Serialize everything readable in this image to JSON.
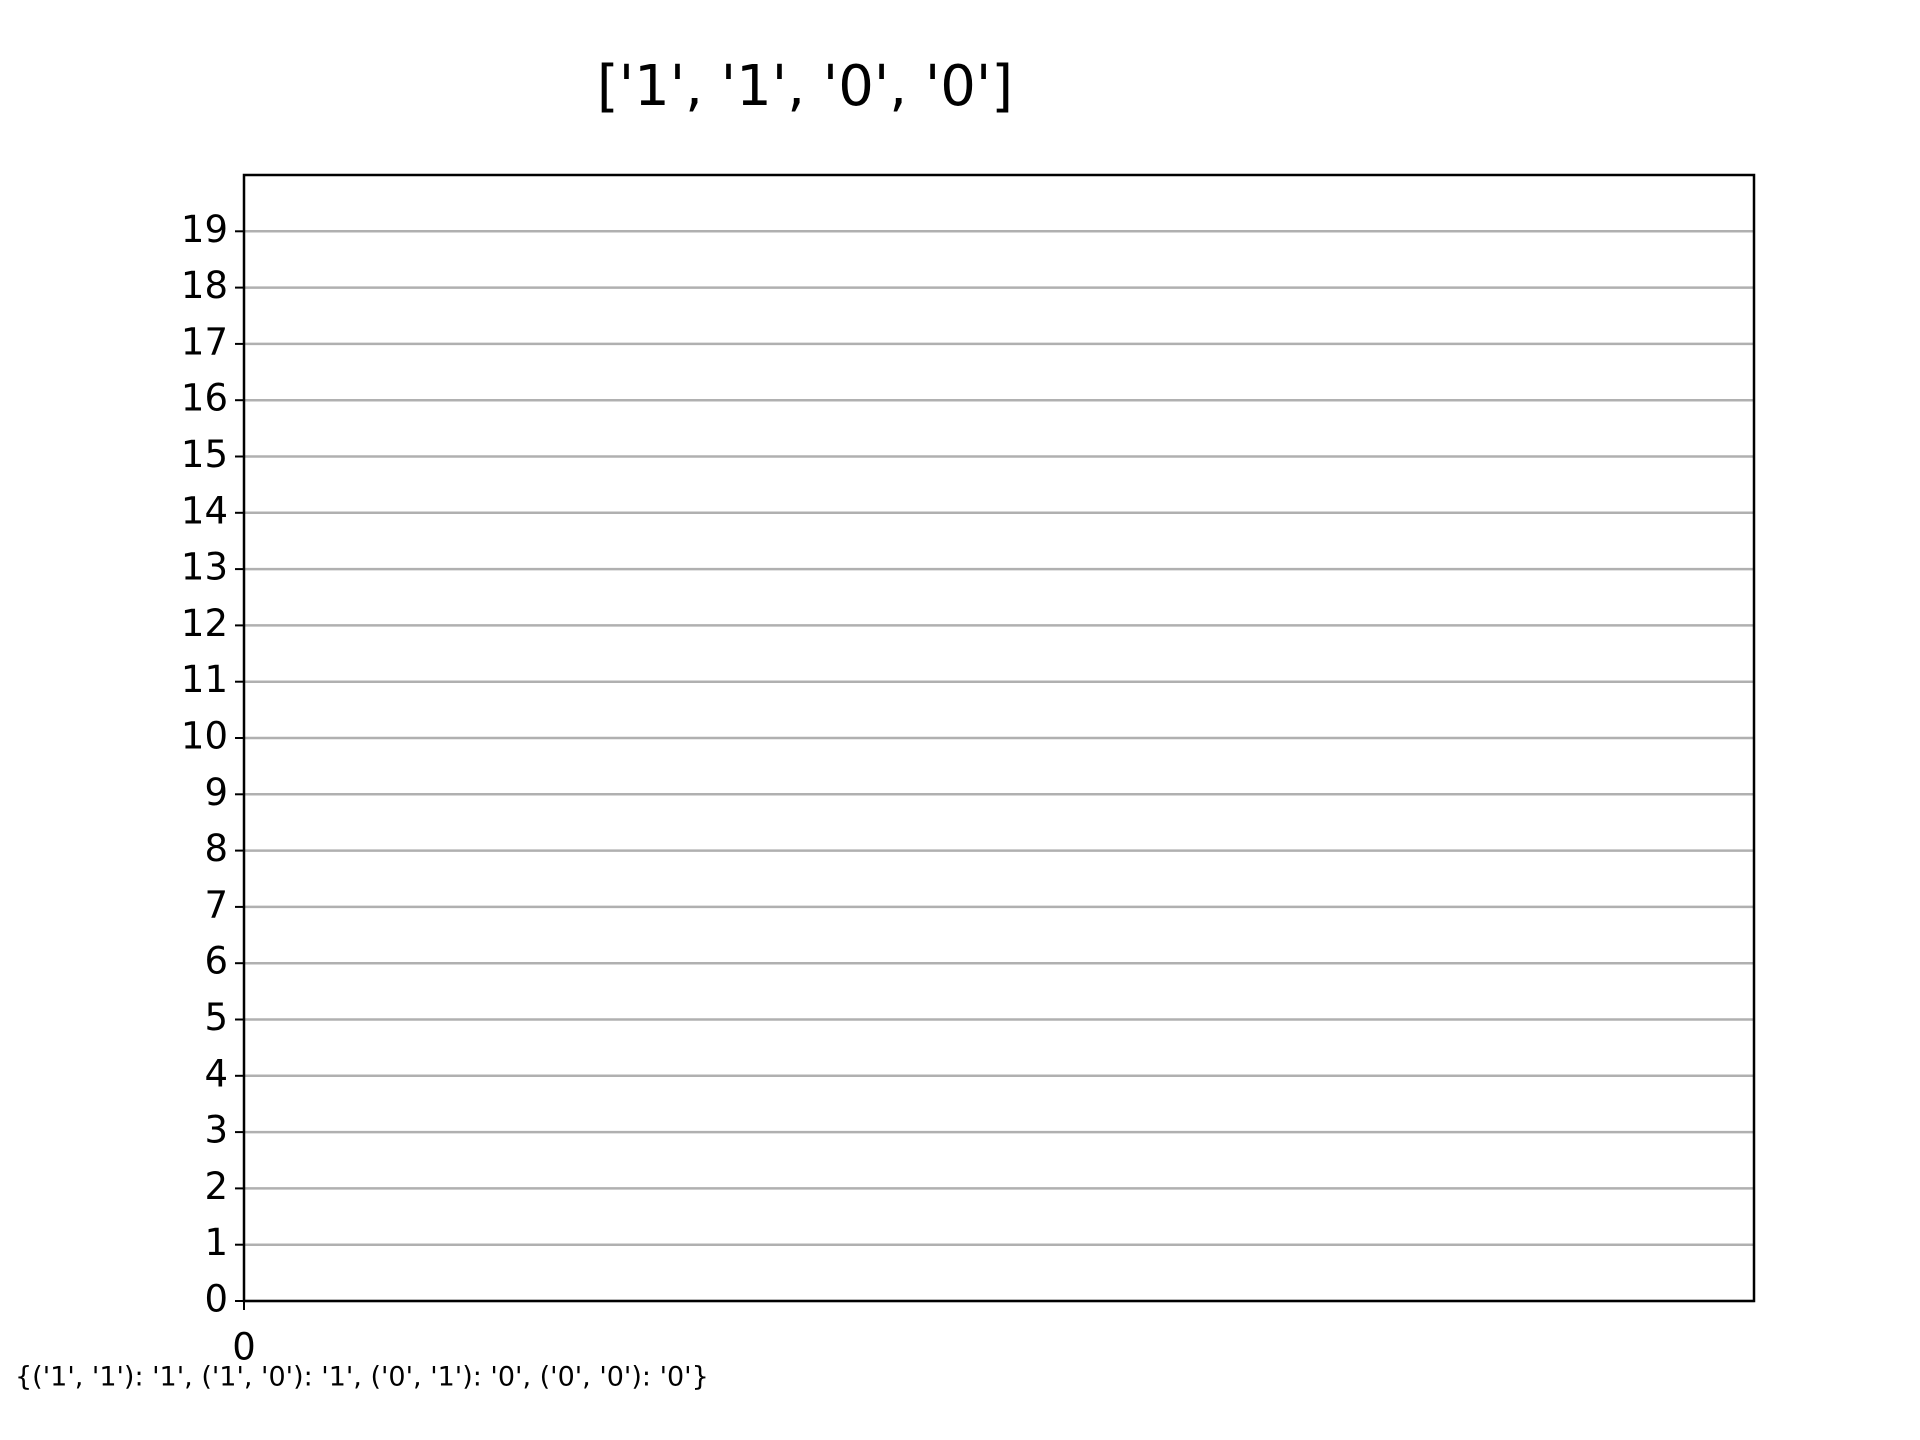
{
  "chart_data": {
    "type": "line",
    "title": "['1', '1', '0', '0']",
    "annotation": "{('1', '1'): '1', ('1', '0'): '1', ('0', '1'): '0', ('0', '0'): '0'}",
    "xlim": [
      0,
      1
    ],
    "xticks": [
      0
    ],
    "ylim": [
      0,
      20
    ],
    "yticks": [
      0,
      1,
      2,
      3,
      4,
      5,
      6,
      7,
      8,
      9,
      10,
      11,
      12,
      13,
      14,
      15,
      16,
      17,
      18,
      19
    ],
    "grid": true,
    "grid_color": "#b0b0b0"
  }
}
